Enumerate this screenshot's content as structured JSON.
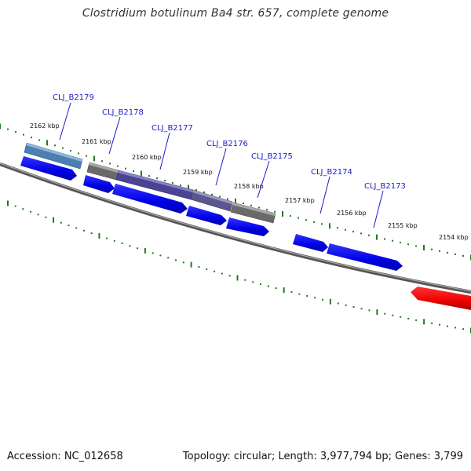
{
  "title": "Clostridium botulinum Ba4 str. 657, complete genome",
  "accession": "Accession: NC_012658",
  "summary": "Topology: circular; Length: 3,977,794 bp; Genes: 3,799",
  "colors": {
    "backbone": "#777777",
    "tick": "#1f7a1f",
    "gene_label": "#1a1acc",
    "cds_blue": "#0000ee",
    "cds_red": "#ee0000",
    "feature_steel": "#4a7fb0",
    "feature_grey": "#666666",
    "feature_purple": "#4b4494"
  },
  "kbp_labels": [
    "2162 kbp",
    "2161 kbp",
    "2160 kbp",
    "2159 kbp",
    "2158 kbp",
    "2157 kbp",
    "2156 kbp",
    "2155 kbp",
    "2154 kbp"
  ],
  "gene_labels": [
    "CLJ_B2179",
    "CLJ_B2178",
    "CLJ_B2177",
    "CLJ_B2176",
    "CLJ_B2175",
    "CLJ_B2174",
    "CLJ_B2173"
  ]
}
